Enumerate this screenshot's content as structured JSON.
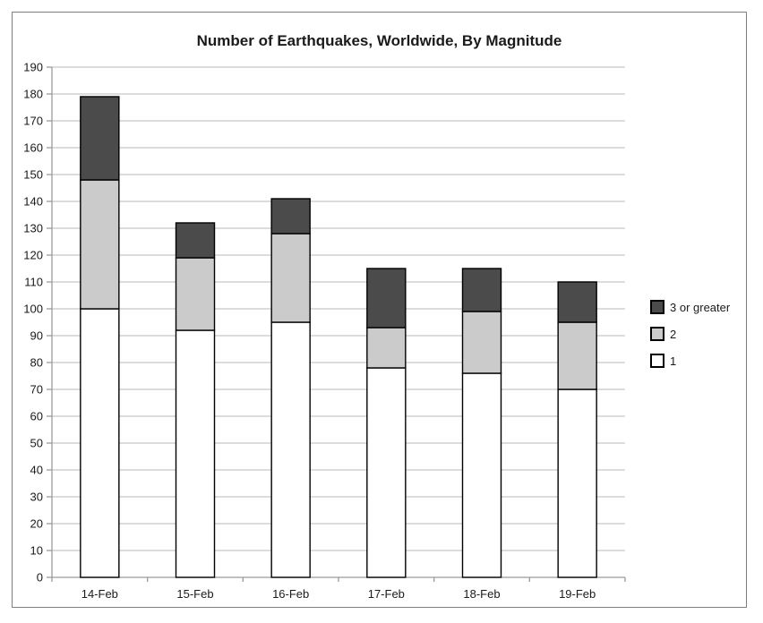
{
  "window": {
    "background_color": "#ffffff",
    "frame_border_color": "#7f7f7f"
  },
  "chart_data": {
    "type": "bar",
    "stacked": true,
    "title": "Number of Earthquakes, Worldwide, By Magnitude",
    "categories": [
      "14-Feb",
      "15-Feb",
      "16-Feb",
      "17-Feb",
      "18-Feb",
      "19-Feb"
    ],
    "series": [
      {
        "name": "1",
        "color": "#ffffff",
        "values": [
          100,
          92,
          95,
          78,
          76,
          70
        ]
      },
      {
        "name": "2",
        "color": "#cbcbcb",
        "values": [
          48,
          27,
          33,
          15,
          23,
          25
        ]
      },
      {
        "name": "3 or greater",
        "color": "#4b4b4b",
        "values": [
          31,
          13,
          13,
          22,
          16,
          15
        ]
      }
    ],
    "stack_totals": [
      179,
      132,
      141,
      115,
      115,
      110
    ],
    "xlabel": "",
    "ylabel": "",
    "ylim": [
      0,
      190
    ],
    "ytick_step": 10,
    "grid": true,
    "legend_position": "right",
    "legend_order": [
      "3 or greater",
      "2",
      "1"
    ],
    "styles": {
      "bar_border_color": "#000000",
      "gridline_color": "#c6c6c6",
      "axis_color": "#9b9b9b",
      "tick_color": "#9b9b9b",
      "text_color": "#1a1a1a"
    }
  }
}
